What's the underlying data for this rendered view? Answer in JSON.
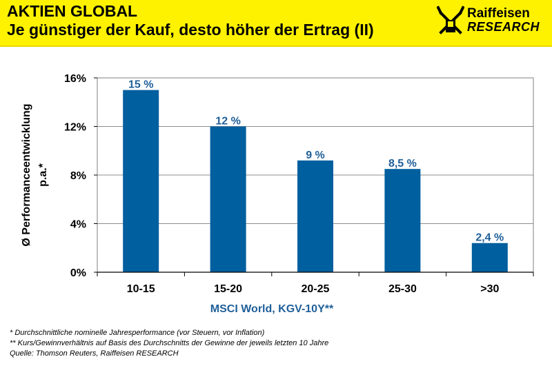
{
  "header": {
    "title_line1": "AKTIEN GLOBAL",
    "title_line2": "Je günstiger der Kauf, desto höher der Ertrag (II)",
    "logo_name": "Raiffeisen",
    "logo_sub": "RESEARCH"
  },
  "colors": {
    "header_bg": "#fff200",
    "bar": "#005f9e",
    "label": "#1f5f99"
  },
  "chart_data": {
    "type": "bar",
    "categories": [
      "10-15",
      "15-20",
      "20-25",
      "25-30",
      ">30"
    ],
    "values": [
      15,
      12,
      9.2,
      8.5,
      2.4
    ],
    "data_labels": [
      "15 %",
      "12 %",
      "9 %",
      "8,5 %",
      "2,4 %"
    ],
    "ylim": [
      0,
      16
    ],
    "yticks": [
      0,
      4,
      8,
      12,
      16
    ],
    "ytick_labels": [
      "0%",
      "4%",
      "8%",
      "12%",
      "16%"
    ],
    "ylabel_line1": "Ø Performanceentwicklung",
    "ylabel_line2": "p.a.*",
    "xlabel": "MSCI World, KGV-10Y**",
    "grid": true
  },
  "footnotes": [
    "* Durchschnittliche nominelle Jahresperformance (vor Steuern, vor Inflation)",
    "** Kurs/Gewinnverhältnis auf Basis des Durchschnitts der Gewinne der jeweils letzten 10 Jahre",
    "Quelle: Thomson Reuters, Raiffeisen RESEARCH"
  ]
}
